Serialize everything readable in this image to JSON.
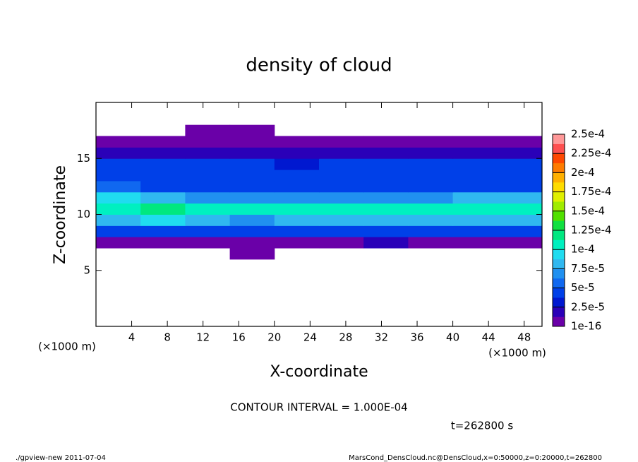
{
  "chart_data": {
    "type": "heatmap",
    "title": "density of cloud",
    "x_label": "X-coordinate",
    "y_label": "Z-coordinate",
    "x_unit": "(×1000 m)",
    "y_unit": "(×1000 m)",
    "contour_note": "CONTOUR INTERVAL = 1.000E-04",
    "time_note": "t=262800 s",
    "footer_left": "./gpview-new  2011-07-04",
    "footer_right": "MarsCond_DensCloud.nc@DensCloud,x=0:50000,z=0:20000,t=262800",
    "xlim": [
      0,
      50
    ],
    "xticks": [
      4,
      8,
      12,
      16,
      20,
      24,
      28,
      32,
      36,
      40,
      44,
      48
    ],
    "ylim": [
      0,
      20
    ],
    "yticks": [
      5,
      10,
      15
    ],
    "x": [
      2.5,
      7.5,
      12.5,
      17.5,
      22.5,
      27.5,
      32.5,
      37.5,
      42.5,
      47.5
    ],
    "y": [
      6.5,
      7.5,
      8.5,
      9.5,
      10.5,
      11.5,
      12.5,
      13.5,
      14.5,
      15.5,
      16.5,
      17.5
    ],
    "z": [
      [
        0,
        0,
        0,
        5e-06,
        0,
        0,
        0,
        0,
        0,
        0
      ],
      [
        1e-05,
        1e-05,
        1.2e-05,
        8e-06,
        1e-05,
        1.2e-05,
        1.5e-05,
        1e-05,
        1.2e-05,
        1e-05
      ],
      [
        4e-05,
        4.2e-05,
        4e-05,
        3.8e-05,
        4e-05,
        4.2e-05,
        4e-05,
        3.8e-05,
        4.2e-05,
        4e-05
      ],
      [
        8.5e-05,
        8.8e-05,
        8e-05,
        7.5e-05,
        8e-05,
        8e-05,
        8.2e-05,
        8e-05,
        8.5e-05,
        8.5e-05
      ],
      [
        0.000112,
        0.000115,
        0.000105,
        0.000102,
        0.000102,
        0.000102,
        0.000105,
        0.000102,
        0.000112,
        0.00011
      ],
      [
        9e-05,
        8.5e-05,
        7e-05,
        7e-05,
        6.5e-05,
        7e-05,
        7e-05,
        7e-05,
        8.5e-05,
        8e-05
      ],
      [
        5.5e-05,
        5e-05,
        4.5e-05,
        4.5e-05,
        4.5e-05,
        4.8e-05,
        4.8e-05,
        5e-05,
        5e-05,
        5e-05
      ],
      [
        4.5e-05,
        4.5e-05,
        4.5e-05,
        4.2e-05,
        4.2e-05,
        4.5e-05,
        4.5e-05,
        4.8e-05,
        5e-05,
        4.5e-05
      ],
      [
        4e-05,
        4.2e-05,
        4e-05,
        4e-05,
        3.5e-05,
        4e-05,
        4.2e-05,
        4.5e-05,
        4.8e-05,
        4.2e-05
      ],
      [
        2e-05,
        2.2e-05,
        2e-05,
        2e-05,
        2e-05,
        2e-05,
        2.2e-05,
        2e-05,
        2.5e-05,
        2.2e-05
      ],
      [
        5e-06,
        5e-06,
        5e-06,
        5e-06,
        5e-06,
        5e-06,
        5e-06,
        5e-06,
        5e-06,
        5e-06
      ],
      [
        0,
        0,
        3e-06,
        3e-06,
        0,
        0,
        0,
        0,
        0,
        0
      ]
    ],
    "colorbar": [
      {
        "value": 1e-16,
        "label": "1e-16"
      },
      {
        "value": 2.5e-05,
        "label": "2.5e-5"
      },
      {
        "value": 5e-05,
        "label": "5e-5"
      },
      {
        "value": 7.5e-05,
        "label": "7.5e-5"
      },
      {
        "value": 0.0001,
        "label": "1e-4"
      },
      {
        "value": 0.000125,
        "label": "1.25e-4"
      },
      {
        "value": 0.00015,
        "label": "1.5e-4"
      },
      {
        "value": 0.000175,
        "label": "1.75e-4"
      },
      {
        "value": 0.0002,
        "label": "2e-4"
      },
      {
        "value": 0.000225,
        "label": "2.25e-4"
      },
      {
        "value": 0.00025,
        "label": "2.5e-4"
      }
    ],
    "colors": [
      "#6a00a8",
      "#2a00b8",
      "#0018d0",
      "#0040e8",
      "#1068f0",
      "#2090f0",
      "#30b8f0",
      "#20dcf0",
      "#00f0c0",
      "#00e880",
      "#10e040",
      "#50e000",
      "#a0ec00",
      "#e0f000",
      "#ffdc00",
      "#ffb000",
      "#ff7c00",
      "#ff4800",
      "#ff5050",
      "#ff9898"
    ]
  }
}
